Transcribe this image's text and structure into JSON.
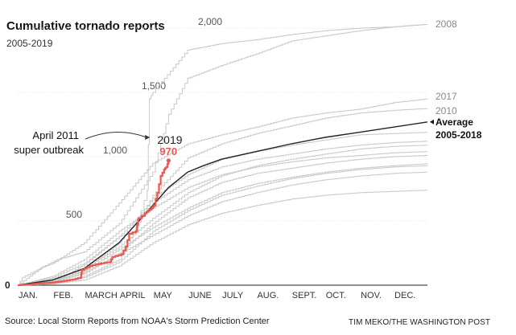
{
  "header": {
    "title": "Cumulative tornado reports",
    "subtitle": "2005-2019"
  },
  "footer": {
    "source": "Source: Local Storm Reports from NOAA's Storm Prediction Center",
    "credit": "TIM MEKO/THE WASHINGTON POST"
  },
  "colors": {
    "current_year": "#e8584f",
    "average": "#222222",
    "past_years": "#c8c8c8",
    "tick_label": "#555555"
  },
  "chart_data": {
    "type": "line",
    "title": "Cumulative tornado reports",
    "subtitle": "2005-2019",
    "xlabel": "",
    "ylabel": "",
    "x_unit": "day of year",
    "xlim": [
      1,
      365
    ],
    "ylim": [
      0,
      2000
    ],
    "y_ticks": [
      {
        "value": 0,
        "label": "0"
      },
      {
        "value": 500,
        "label": "500"
      },
      {
        "value": 1000,
        "label": "1,000"
      },
      {
        "value": 1500,
        "label": "1,500"
      },
      {
        "value": 2000,
        "label": "2,000"
      }
    ],
    "x_ticks": [
      {
        "day": 1,
        "label": "JAN."
      },
      {
        "day": 32,
        "label": "FEB."
      },
      {
        "day": 60,
        "label": "MARCH"
      },
      {
        "day": 91,
        "label": "APRIL"
      },
      {
        "day": 121,
        "label": "MAY"
      },
      {
        "day": 152,
        "label": "JUNE"
      },
      {
        "day": 182,
        "label": "JULY"
      },
      {
        "day": 213,
        "label": "AUG."
      },
      {
        "day": 244,
        "label": "SEPT."
      },
      {
        "day": 274,
        "label": "OCT."
      },
      {
        "day": 305,
        "label": "NOV."
      },
      {
        "day": 335,
        "label": "DEC."
      }
    ],
    "grid": true,
    "series": [
      {
        "name": "2008",
        "role": "past",
        "end_label": "2008",
        "points": [
          [
            1,
            0
          ],
          [
            5,
            60
          ],
          [
            36,
            200
          ],
          [
            60,
            260
          ],
          [
            91,
            480
          ],
          [
            121,
            880
          ],
          [
            135,
            1330
          ],
          [
            152,
            1610
          ],
          [
            182,
            1710
          ],
          [
            213,
            1800
          ],
          [
            244,
            1900
          ],
          [
            274,
            1940
          ],
          [
            305,
            1980
          ],
          [
            335,
            2010
          ],
          [
            365,
            2030
          ]
        ]
      },
      {
        "name": "2011",
        "role": "past",
        "points": [
          [
            1,
            0
          ],
          [
            32,
            60
          ],
          [
            60,
            170
          ],
          [
            91,
            380
          ],
          [
            105,
            420
          ],
          [
            116,
            740
          ],
          [
            118,
            1450
          ],
          [
            121,
            1500
          ],
          [
            152,
            1830
          ],
          [
            182,
            1880
          ],
          [
            213,
            1910
          ],
          [
            244,
            1950
          ],
          [
            274,
            1980
          ],
          [
            305,
            2000
          ],
          [
            335,
            2010
          ],
          [
            365,
            2030
          ]
        ]
      },
      {
        "name": "2017",
        "role": "past",
        "end_label": "2017",
        "points": [
          [
            1,
            0
          ],
          [
            22,
            140
          ],
          [
            32,
            170
          ],
          [
            60,
            330
          ],
          [
            91,
            640
          ],
          [
            121,
            950
          ],
          [
            152,
            1100
          ],
          [
            182,
            1170
          ],
          [
            213,
            1230
          ],
          [
            244,
            1300
          ],
          [
            274,
            1340
          ],
          [
            305,
            1370
          ],
          [
            335,
            1420
          ],
          [
            365,
            1450
          ]
        ]
      },
      {
        "name": "2010",
        "role": "past",
        "end_label": "2010",
        "points": [
          [
            1,
            0
          ],
          [
            32,
            10
          ],
          [
            60,
            70
          ],
          [
            91,
            200
          ],
          [
            121,
            700
          ],
          [
            152,
            990
          ],
          [
            182,
            1100
          ],
          [
            213,
            1180
          ],
          [
            244,
            1240
          ],
          [
            274,
            1300
          ],
          [
            305,
            1340
          ],
          [
            335,
            1360
          ],
          [
            365,
            1375
          ]
        ]
      },
      {
        "name": "",
        "role": "past",
        "points": [
          [
            1,
            0
          ],
          [
            32,
            30
          ],
          [
            60,
            120
          ],
          [
            91,
            330
          ],
          [
            121,
            680
          ],
          [
            152,
            860
          ],
          [
            182,
            980
          ],
          [
            213,
            1040
          ],
          [
            244,
            1090
          ],
          [
            274,
            1130
          ],
          [
            305,
            1170
          ],
          [
            335,
            1180
          ],
          [
            365,
            1190
          ]
        ]
      },
      {
        "name": "",
        "role": "past",
        "points": [
          [
            1,
            0
          ],
          [
            32,
            20
          ],
          [
            60,
            160
          ],
          [
            91,
            380
          ],
          [
            121,
            640
          ],
          [
            152,
            820
          ],
          [
            182,
            920
          ],
          [
            213,
            980
          ],
          [
            244,
            1020
          ],
          [
            274,
            1060
          ],
          [
            305,
            1090
          ],
          [
            335,
            1110
          ],
          [
            365,
            1120
          ]
        ]
      },
      {
        "name": "",
        "role": "past",
        "points": [
          [
            1,
            0
          ],
          [
            32,
            50
          ],
          [
            60,
            130
          ],
          [
            91,
            300
          ],
          [
            121,
            520
          ],
          [
            152,
            720
          ],
          [
            182,
            850
          ],
          [
            213,
            930
          ],
          [
            244,
            980
          ],
          [
            274,
            1020
          ],
          [
            305,
            1060
          ],
          [
            335,
            1080
          ],
          [
            365,
            1090
          ]
        ]
      },
      {
        "name": "",
        "role": "past",
        "points": [
          [
            1,
            0
          ],
          [
            32,
            70
          ],
          [
            60,
            200
          ],
          [
            91,
            420
          ],
          [
            121,
            600
          ],
          [
            152,
            760
          ],
          [
            182,
            860
          ],
          [
            213,
            920
          ],
          [
            244,
            960
          ],
          [
            274,
            990
          ],
          [
            305,
            1010
          ],
          [
            335,
            1030
          ],
          [
            365,
            1040
          ]
        ]
      },
      {
        "name": "",
        "role": "past",
        "points": [
          [
            1,
            0
          ],
          [
            32,
            25
          ],
          [
            60,
            90
          ],
          [
            91,
            250
          ],
          [
            121,
            480
          ],
          [
            152,
            680
          ],
          [
            182,
            800
          ],
          [
            213,
            870
          ],
          [
            244,
            910
          ],
          [
            274,
            950
          ],
          [
            305,
            980
          ],
          [
            335,
            1000
          ],
          [
            365,
            1010
          ]
        ]
      },
      {
        "name": "",
        "role": "past",
        "points": [
          [
            1,
            0
          ],
          [
            32,
            40
          ],
          [
            60,
            110
          ],
          [
            91,
            280
          ],
          [
            121,
            450
          ],
          [
            152,
            600
          ],
          [
            182,
            720
          ],
          [
            213,
            790
          ],
          [
            244,
            840
          ],
          [
            274,
            880
          ],
          [
            305,
            910
          ],
          [
            335,
            930
          ],
          [
            365,
            945
          ]
        ]
      },
      {
        "name": "",
        "role": "past",
        "points": [
          [
            1,
            0
          ],
          [
            32,
            15
          ],
          [
            60,
            60
          ],
          [
            91,
            180
          ],
          [
            121,
            420
          ],
          [
            152,
            580
          ],
          [
            182,
            700
          ],
          [
            213,
            770
          ],
          [
            244,
            830
          ],
          [
            274,
            870
          ],
          [
            305,
            900
          ],
          [
            335,
            920
          ],
          [
            365,
            930
          ]
        ]
      },
      {
        "name": "",
        "role": "past",
        "points": [
          [
            1,
            0
          ],
          [
            32,
            30
          ],
          [
            60,
            100
          ],
          [
            91,
            240
          ],
          [
            121,
            390
          ],
          [
            152,
            540
          ],
          [
            182,
            650
          ],
          [
            213,
            720
          ],
          [
            244,
            780
          ],
          [
            274,
            820
          ],
          [
            305,
            850
          ],
          [
            335,
            870
          ],
          [
            365,
            880
          ]
        ]
      },
      {
        "name": "",
        "role": "past",
        "points": [
          [
            1,
            0
          ],
          [
            32,
            10
          ],
          [
            60,
            40
          ],
          [
            91,
            150
          ],
          [
            121,
            330
          ],
          [
            152,
            470
          ],
          [
            182,
            560
          ],
          [
            213,
            620
          ],
          [
            244,
            670
          ],
          [
            274,
            700
          ],
          [
            305,
            720
          ],
          [
            335,
            730
          ],
          [
            365,
            740
          ]
        ]
      },
      {
        "name": "Average 2005-2018",
        "role": "average",
        "points": [
          [
            1,
            0
          ],
          [
            32,
            40
          ],
          [
            60,
            130
          ],
          [
            91,
            330
          ],
          [
            121,
            620
          ],
          [
            135,
            760
          ],
          [
            152,
            880
          ],
          [
            166,
            930
          ],
          [
            182,
            980
          ],
          [
            213,
            1040
          ],
          [
            244,
            1100
          ],
          [
            274,
            1150
          ],
          [
            305,
            1190
          ],
          [
            335,
            1230
          ],
          [
            365,
            1270
          ]
        ]
      },
      {
        "name": "2019",
        "role": "current",
        "end_value": 970,
        "points": [
          [
            1,
            0
          ],
          [
            10,
            5
          ],
          [
            20,
            15
          ],
          [
            30,
            20
          ],
          [
            40,
            30
          ],
          [
            50,
            45
          ],
          [
            57,
            60
          ],
          [
            58,
            120
          ],
          [
            65,
            150
          ],
          [
            75,
            170
          ],
          [
            83,
            180
          ],
          [
            85,
            220
          ],
          [
            93,
            240
          ],
          [
            97,
            300
          ],
          [
            100,
            400
          ],
          [
            106,
            420
          ],
          [
            108,
            520
          ],
          [
            114,
            560
          ],
          [
            117,
            580
          ],
          [
            120,
            600
          ],
          [
            122,
            620
          ],
          [
            125,
            720
          ],
          [
            128,
            850
          ],
          [
            131,
            900
          ],
          [
            133,
            920
          ],
          [
            135,
            970
          ]
        ]
      }
    ],
    "annotations": [
      {
        "text_lines": [
          "April 2011",
          "super outbreak"
        ],
        "target_series": "2011",
        "target_day": 117,
        "target_value": 1150
      },
      {
        "text": "2019",
        "series": "2019"
      },
      {
        "text": "970",
        "series": "2019"
      },
      {
        "text_lines": [
          "Average",
          "2005-2018"
        ],
        "series": "Average 2005-2018"
      }
    ],
    "end_labels": [
      "2008",
      "2017",
      "2010"
    ]
  }
}
